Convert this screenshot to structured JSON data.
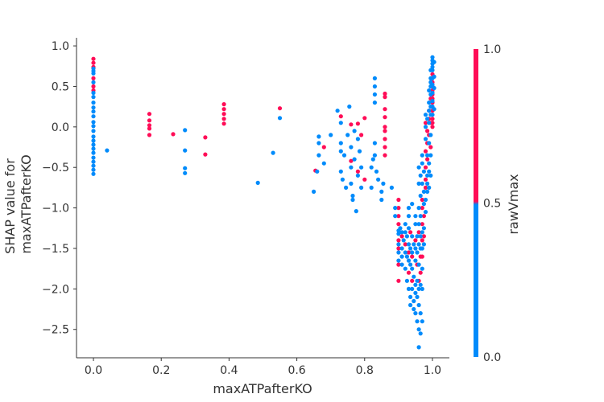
{
  "chart_data": {
    "type": "scatter",
    "xlabel": "maxATPafterKO",
    "ylabel_lines": [
      "SHAP value for",
      "maxATPafterKO"
    ],
    "xlim": [
      -0.05,
      1.05
    ],
    "ylim": [
      -2.85,
      1.1
    ],
    "xticks": [
      "0.0",
      "0.2",
      "0.4",
      "0.6",
      "0.8",
      "1.0"
    ],
    "xtick_values": [
      0,
      0.2,
      0.4,
      0.6,
      0.8,
      1.0
    ],
    "yticks": [
      "1.0",
      "0.5",
      "0.0",
      "−0.5",
      "−1.0",
      "−1.5",
      "−2.0",
      "−2.5"
    ],
    "ytick_values": [
      1.0,
      0.5,
      0.0,
      -0.5,
      -1.0,
      -1.5,
      -2.0,
      -2.5
    ],
    "grid": false,
    "colors": {
      "high": "#ff0d57",
      "low": "#008bfb"
    },
    "colorbar": {
      "label": "rawVmax",
      "ticks": [
        "1.0",
        "0.5",
        "0.0"
      ],
      "tick_values": [
        1.0,
        0.5,
        0.0
      ]
    },
    "series": [
      {
        "color": "#ff0d57",
        "points": [
          [
            0,
            0.84
          ],
          [
            0,
            0.79
          ],
          [
            0,
            0.74
          ],
          [
            0,
            0.6
          ],
          [
            0,
            0.5
          ],
          [
            0,
            0.45
          ],
          [
            0.165,
            0.16
          ],
          [
            0.165,
            0.08
          ],
          [
            0.165,
            0.02
          ],
          [
            0.165,
            -0.02
          ],
          [
            0.165,
            -0.1
          ],
          [
            0.235,
            -0.09
          ],
          [
            0.33,
            -0.13
          ],
          [
            0.33,
            -0.34
          ],
          [
            0.385,
            0.28
          ],
          [
            0.385,
            0.22
          ],
          [
            0.385,
            0.16
          ],
          [
            0.385,
            0.1
          ],
          [
            0.385,
            0.04
          ],
          [
            0.55,
            0.23
          ],
          [
            0.655,
            -0.54
          ],
          [
            0.68,
            -0.25
          ],
          [
            0.73,
            0.13
          ],
          [
            0.76,
            0.03
          ],
          [
            0.78,
            0.04
          ],
          [
            0.79,
            -0.1
          ],
          [
            0.8,
            0.11
          ],
          [
            0.76,
            -0.42
          ],
          [
            0.78,
            -0.55
          ],
          [
            0.8,
            -0.65
          ],
          [
            0.86,
            0.41
          ],
          [
            0.86,
            0.37
          ],
          [
            0.86,
            0.22
          ],
          [
            0.86,
            0.12
          ],
          [
            0.86,
            0.0
          ],
          [
            0.86,
            -0.05
          ],
          [
            0.86,
            -0.15
          ],
          [
            0.86,
            -0.25
          ],
          [
            0.86,
            -0.35
          ],
          [
            0.9,
            -0.9
          ],
          [
            0.9,
            -1.0
          ],
          [
            0.9,
            -1.1
          ],
          [
            0.9,
            -1.2
          ],
          [
            0.9,
            -1.4
          ],
          [
            0.9,
            -1.5
          ],
          [
            0.9,
            -1.7
          ],
          [
            0.9,
            -1.9
          ],
          [
            0.91,
            -1.35
          ],
          [
            0.92,
            -1.45
          ],
          [
            0.93,
            -1.55
          ],
          [
            0.93,
            -1.8
          ],
          [
            0.935,
            -1.3
          ],
          [
            0.94,
            -1.6
          ],
          [
            0.94,
            -1.9
          ],
          [
            0.95,
            -1.4
          ],
          [
            0.955,
            -1.7
          ],
          [
            0.96,
            -1.3
          ],
          [
            0.96,
            -1.9
          ],
          [
            0.965,
            -1.6
          ],
          [
            0.965,
            -1.8
          ],
          [
            0.97,
            -0.9
          ],
          [
            0.97,
            -1.0
          ],
          [
            0.97,
            -1.2
          ],
          [
            0.97,
            -1.4
          ],
          [
            0.97,
            -1.6
          ],
          [
            0.975,
            -1.1
          ],
          [
            0.975,
            -1.35
          ],
          [
            0.98,
            -0.3
          ],
          [
            0.98,
            -0.5
          ],
          [
            0.98,
            -0.65
          ],
          [
            0.98,
            -0.75
          ],
          [
            0.98,
            0.05
          ],
          [
            0.985,
            -0.2
          ],
          [
            0.985,
            -0.4
          ],
          [
            0.985,
            -0.05
          ],
          [
            0.99,
            0.1
          ],
          [
            0.99,
            -0.1
          ],
          [
            0.99,
            0.2
          ],
          [
            0.995,
            0.05
          ],
          [
            0.995,
            0.35
          ],
          [
            0.995,
            -0.25
          ],
          [
            1.0,
            0.5
          ],
          [
            1.0,
            0.45
          ],
          [
            1.0,
            0.4
          ],
          [
            1.0,
            0.35
          ],
          [
            1.0,
            0.3
          ],
          [
            1.0,
            0.2
          ],
          [
            1.0,
            0.1
          ],
          [
            1.0,
            0.05
          ],
          [
            1.0,
            0.0
          ],
          [
            1.0,
            0.65
          ],
          [
            1.0,
            0.55
          ]
        ]
      },
      {
        "color": "#008bfb",
        "points": [
          [
            0,
            0.72
          ],
          [
            0,
            0.69
          ],
          [
            0,
            0.66
          ],
          [
            0,
            0.55
          ],
          [
            0,
            0.42
          ],
          [
            0,
            0.37
          ],
          [
            0,
            0.3
          ],
          [
            0,
            0.24
          ],
          [
            0,
            0.19
          ],
          [
            0,
            0.13
          ],
          [
            0,
            0.06
          ],
          [
            0,
            0.01
          ],
          [
            0,
            -0.05
          ],
          [
            0,
            -0.12
          ],
          [
            0,
            -0.17
          ],
          [
            0,
            -0.22
          ],
          [
            0,
            -0.27
          ],
          [
            0,
            -0.32
          ],
          [
            0,
            -0.38
          ],
          [
            0,
            -0.43
          ],
          [
            0,
            -0.48
          ],
          [
            0,
            -0.53
          ],
          [
            0,
            -0.58
          ],
          [
            0.04,
            -0.29
          ],
          [
            0.27,
            -0.04
          ],
          [
            0.27,
            -0.29
          ],
          [
            0.27,
            -0.51
          ],
          [
            0.27,
            -0.57
          ],
          [
            0.485,
            -0.69
          ],
          [
            0.53,
            -0.32
          ],
          [
            0.55,
            0.11
          ],
          [
            0.65,
            -0.8
          ],
          [
            0.66,
            -0.55
          ],
          [
            0.665,
            -0.35
          ],
          [
            0.665,
            -0.2
          ],
          [
            0.665,
            -0.12
          ],
          [
            0.68,
            -0.45
          ],
          [
            0.7,
            -0.1
          ],
          [
            0.72,
            0.2
          ],
          [
            0.73,
            0.05
          ],
          [
            0.73,
            -0.2
          ],
          [
            0.73,
            -0.3
          ],
          [
            0.73,
            -0.55
          ],
          [
            0.735,
            -0.65
          ],
          [
            0.74,
            -0.35
          ],
          [
            0.745,
            -0.75
          ],
          [
            0.75,
            -0.1
          ],
          [
            0.755,
            0.25
          ],
          [
            0.76,
            -0.25
          ],
          [
            0.76,
            -0.5
          ],
          [
            0.76,
            -0.7
          ],
          [
            0.765,
            -0.85
          ],
          [
            0.765,
            -0.9
          ],
          [
            0.77,
            -0.05
          ],
          [
            0.77,
            -0.4
          ],
          [
            0.775,
            -1.04
          ],
          [
            0.78,
            -0.6
          ],
          [
            0.78,
            -0.15
          ],
          [
            0.785,
            -0.3
          ],
          [
            0.79,
            -0.5
          ],
          [
            0.79,
            -0.75
          ],
          [
            0.82,
            -0.5
          ],
          [
            0.82,
            -0.75
          ],
          [
            0.825,
            -0.4
          ],
          [
            0.83,
            0.6
          ],
          [
            0.83,
            0.5
          ],
          [
            0.83,
            0.4
          ],
          [
            0.83,
            0.3
          ],
          [
            0.83,
            -0.2
          ],
          [
            0.83,
            -0.35
          ],
          [
            0.835,
            -0.55
          ],
          [
            0.84,
            -0.65
          ],
          [
            0.85,
            -0.8
          ],
          [
            0.85,
            -0.9
          ],
          [
            0.855,
            -0.7
          ],
          [
            0.88,
            -0.75
          ],
          [
            0.89,
            -1.0
          ],
          [
            0.89,
            -1.1
          ],
          [
            0.9,
            -1.28
          ],
          [
            0.9,
            -1.32
          ],
          [
            0.9,
            -1.45
          ],
          [
            0.9,
            -1.55
          ],
          [
            0.9,
            -1.65
          ],
          [
            0.905,
            -1.25
          ],
          [
            0.91,
            -1.3
          ],
          [
            0.91,
            -1.5
          ],
          [
            0.91,
            -1.6
          ],
          [
            0.91,
            -1.7
          ],
          [
            0.915,
            -1.4
          ],
          [
            0.92,
            -1.3
          ],
          [
            0.92,
            -1.55
          ],
          [
            0.92,
            -1.75
          ],
          [
            0.92,
            -1.2
          ],
          [
            0.925,
            -1.35
          ],
          [
            0.925,
            -1.6
          ],
          [
            0.925,
            -1.9
          ],
          [
            0.93,
            -1.25
          ],
          [
            0.93,
            -1.45
          ],
          [
            0.93,
            -1.65
          ],
          [
            0.93,
            -2.0
          ],
          [
            0.93,
            -1.0
          ],
          [
            0.93,
            -1.1
          ],
          [
            0.935,
            -1.5
          ],
          [
            0.935,
            -1.7
          ],
          [
            0.935,
            -2.1
          ],
          [
            0.935,
            -2.2
          ],
          [
            0.94,
            -1.35
          ],
          [
            0.94,
            -1.55
          ],
          [
            0.94,
            -1.75
          ],
          [
            0.94,
            -2.0
          ],
          [
            0.94,
            -0.95
          ],
          [
            0.945,
            -1.45
          ],
          [
            0.945,
            -1.85
          ],
          [
            0.945,
            -2.15
          ],
          [
            0.945,
            -2.25
          ],
          [
            0.95,
            -1.2
          ],
          [
            0.95,
            -1.5
          ],
          [
            0.95,
            -1.65
          ],
          [
            0.95,
            -1.95
          ],
          [
            0.95,
            -2.05
          ],
          [
            0.95,
            -2.3
          ],
          [
            0.95,
            -1.1
          ],
          [
            0.955,
            -1.35
          ],
          [
            0.955,
            -1.55
          ],
          [
            0.955,
            -1.9
          ],
          [
            0.955,
            -2.1
          ],
          [
            0.955,
            -2.4
          ],
          [
            0.96,
            -1.0
          ],
          [
            0.96,
            -1.2
          ],
          [
            0.96,
            -1.45
          ],
          [
            0.96,
            -1.7
          ],
          [
            0.96,
            -2.0
          ],
          [
            0.96,
            -2.2
          ],
          [
            0.96,
            -2.5
          ],
          [
            0.96,
            -2.72
          ],
          [
            0.96,
            -0.5
          ],
          [
            0.96,
            -0.7
          ],
          [
            0.965,
            -1.1
          ],
          [
            0.965,
            -1.35
          ],
          [
            0.965,
            -1.5
          ],
          [
            0.965,
            -1.95
          ],
          [
            0.965,
            -2.3
          ],
          [
            0.965,
            -2.55
          ],
          [
            0.965,
            -0.85
          ],
          [
            0.965,
            -0.6
          ],
          [
            0.97,
            -0.45
          ],
          [
            0.97,
            -0.7
          ],
          [
            0.97,
            -1.3
          ],
          [
            0.97,
            -1.5
          ],
          [
            0.97,
            -1.75
          ],
          [
            0.97,
            -2.0
          ],
          [
            0.97,
            -2.4
          ],
          [
            0.97,
            -0.35
          ],
          [
            0.975,
            -0.55
          ],
          [
            0.975,
            -0.8
          ],
          [
            0.975,
            -0.95
          ],
          [
            0.975,
            -1.25
          ],
          [
            0.975,
            -1.45
          ],
          [
            0.98,
            -0.9
          ],
          [
            0.98,
            -1.05
          ],
          [
            0.98,
            -0.15
          ],
          [
            0.98,
            0.0
          ],
          [
            0.98,
            0.15
          ],
          [
            0.985,
            -0.6
          ],
          [
            0.985,
            -0.8
          ],
          [
            0.985,
            -0.7
          ],
          [
            0.985,
            0.1
          ],
          [
            0.985,
            -0.35
          ],
          [
            0.99,
            0.3
          ],
          [
            0.99,
            0.45
          ],
          [
            0.99,
            0.2
          ],
          [
            0.99,
            -0.2
          ],
          [
            0.99,
            -0.45
          ],
          [
            0.99,
            -0.55
          ],
          [
            0.99,
            -0.75
          ],
          [
            0.99,
            0.05
          ],
          [
            0.995,
            0.6
          ],
          [
            0.995,
            0.7
          ],
          [
            0.995,
            0.25
          ],
          [
            0.995,
            0.15
          ],
          [
            0.995,
            -0.1
          ],
          [
            0.995,
            -0.35
          ],
          [
            0.995,
            -0.6
          ],
          [
            1.0,
            0.86
          ],
          [
            1.0,
            0.82
          ],
          [
            1.0,
            0.78
          ],
          [
            1.0,
            0.74
          ],
          [
            1.0,
            0.7
          ],
          [
            1.0,
            0.6
          ],
          [
            1.0,
            0.52
          ],
          [
            1.0,
            0.42
          ],
          [
            1.0,
            0.32
          ],
          [
            1.0,
            0.25
          ],
          [
            1.0,
            0.15
          ],
          [
            1.005,
            0.8
          ],
          [
            1.005,
            0.62
          ],
          [
            1.005,
            0.48
          ],
          [
            1.005,
            0.22
          ],
          [
            0.995,
            0.55
          ],
          [
            0.995,
            0.5
          ],
          [
            0.995,
            0.4
          ]
        ]
      }
    ]
  }
}
